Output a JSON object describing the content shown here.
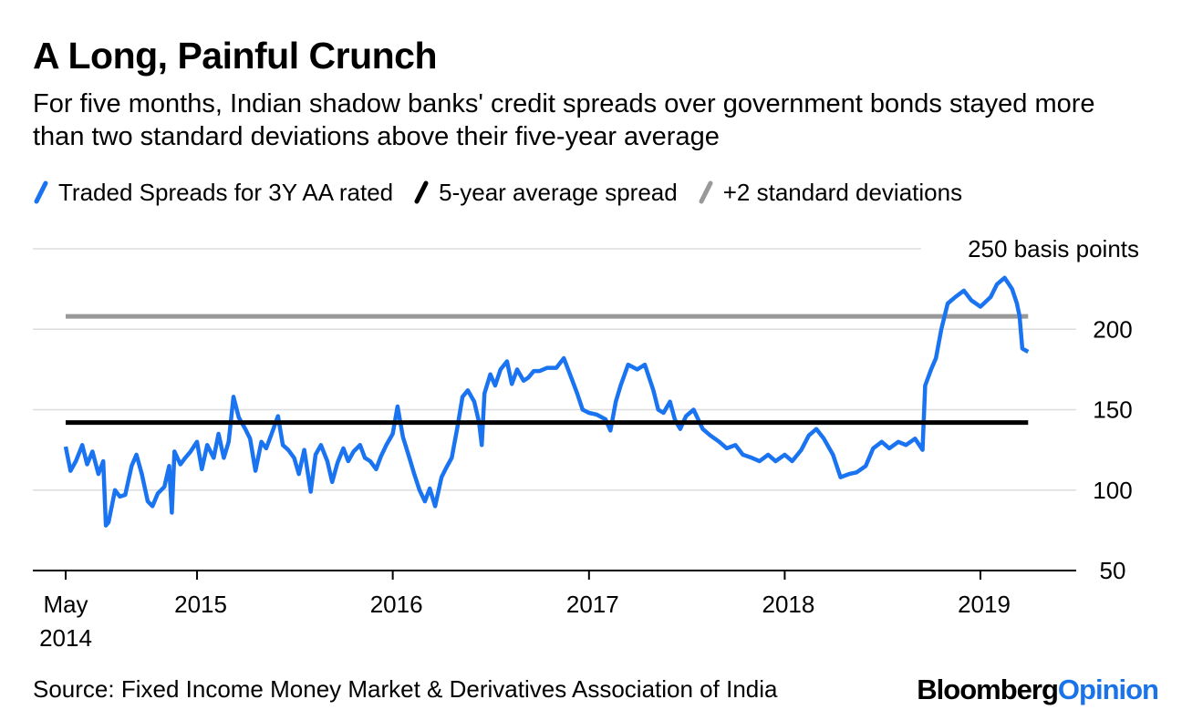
{
  "title": "A Long, Painful Crunch",
  "subtitle": "For five months, Indian shadow banks' credit spreads over government bonds stayed more than two standard deviations above their five-year average",
  "source": "Source: Fixed Income Money Market & Derivatives Association of India",
  "brand": {
    "part1": "Bloomberg",
    "part2": "Opinion"
  },
  "colors": {
    "traded": "#1a73f0",
    "average": "#000000",
    "stdev": "#999999"
  },
  "chart_data": {
    "type": "line",
    "title": "A Long, Painful Crunch",
    "subtitle": "For five months, Indian shadow banks' credit spreads over government bonds stayed more than two standard deviations above their five-year average",
    "ylabel": "250 basis points",
    "unit_label": "basis points",
    "ylim": [
      50,
      250
    ],
    "yticks": [
      50,
      100,
      150,
      200
    ],
    "ytick_labels": [
      "50",
      "100",
      "150",
      "200"
    ],
    "top_label": "250 basis points",
    "xlim": [
      "2014-04-01",
      "2019-07-01"
    ],
    "xticks": [
      "2014-05-01",
      "2015-01-01",
      "2016-01-01",
      "2017-01-01",
      "2018-01-01",
      "2019-01-01"
    ],
    "xtick_labels": [
      [
        "May",
        "2014"
      ],
      [
        "2015"
      ],
      [
        "2016"
      ],
      [
        "2017"
      ],
      [
        "2018"
      ],
      [
        "2019"
      ]
    ],
    "grid": true,
    "legend_position": "top",
    "series": [
      {
        "name": "Traded Spreads for 3Y AA rated",
        "color": "#1a73f0",
        "points": [
          [
            "2014-05-01",
            127
          ],
          [
            "2014-05-10",
            112
          ],
          [
            "2014-05-20",
            118
          ],
          [
            "2014-06-01",
            128
          ],
          [
            "2014-06-10",
            116
          ],
          [
            "2014-06-20",
            124
          ],
          [
            "2014-07-01",
            110
          ],
          [
            "2014-07-10",
            118
          ],
          [
            "2014-07-15",
            78
          ],
          [
            "2014-07-20",
            80
          ],
          [
            "2014-08-01",
            100
          ],
          [
            "2014-08-10",
            96
          ],
          [
            "2014-08-20",
            97
          ],
          [
            "2014-09-01",
            115
          ],
          [
            "2014-09-10",
            122
          ],
          [
            "2014-09-20",
            110
          ],
          [
            "2014-10-01",
            93
          ],
          [
            "2014-10-10",
            90
          ],
          [
            "2014-10-20",
            98
          ],
          [
            "2014-11-01",
            102
          ],
          [
            "2014-11-10",
            115
          ],
          [
            "2014-11-15",
            86
          ],
          [
            "2014-11-20",
            124
          ],
          [
            "2014-12-01",
            116
          ],
          [
            "2014-12-10",
            120
          ],
          [
            "2014-12-20",
            124
          ],
          [
            "2015-01-01",
            130
          ],
          [
            "2015-01-10",
            113
          ],
          [
            "2015-01-20",
            128
          ],
          [
            "2015-02-01",
            120
          ],
          [
            "2015-02-10",
            135
          ],
          [
            "2015-02-20",
            120
          ],
          [
            "2015-03-01",
            130
          ],
          [
            "2015-03-10",
            158
          ],
          [
            "2015-03-20",
            145
          ],
          [
            "2015-04-01",
            138
          ],
          [
            "2015-04-10",
            132
          ],
          [
            "2015-04-20",
            112
          ],
          [
            "2015-05-01",
            130
          ],
          [
            "2015-05-10",
            126
          ],
          [
            "2015-05-20",
            135
          ],
          [
            "2015-06-01",
            146
          ],
          [
            "2015-06-10",
            128
          ],
          [
            "2015-06-20",
            125
          ],
          [
            "2015-07-01",
            120
          ],
          [
            "2015-07-10",
            110
          ],
          [
            "2015-07-20",
            125
          ],
          [
            "2015-08-01",
            99
          ],
          [
            "2015-08-10",
            122
          ],
          [
            "2015-08-20",
            128
          ],
          [
            "2015-09-01",
            118
          ],
          [
            "2015-09-10",
            105
          ],
          [
            "2015-09-20",
            117
          ],
          [
            "2015-10-01",
            126
          ],
          [
            "2015-10-10",
            118
          ],
          [
            "2015-10-20",
            124
          ],
          [
            "2015-11-01",
            128
          ],
          [
            "2015-11-10",
            120
          ],
          [
            "2015-11-20",
            118
          ],
          [
            "2015-12-01",
            113
          ],
          [
            "2015-12-10",
            121
          ],
          [
            "2015-12-20",
            128
          ],
          [
            "2016-01-01",
            135
          ],
          [
            "2016-01-10",
            152
          ],
          [
            "2016-01-20",
            133
          ],
          [
            "2016-02-01",
            120
          ],
          [
            "2016-02-10",
            110
          ],
          [
            "2016-02-20",
            100
          ],
          [
            "2016-03-01",
            93
          ],
          [
            "2016-03-10",
            101
          ],
          [
            "2016-03-20",
            90
          ],
          [
            "2016-04-01",
            108
          ],
          [
            "2016-04-10",
            114
          ],
          [
            "2016-04-20",
            120
          ],
          [
            "2016-05-01",
            140
          ],
          [
            "2016-05-10",
            158
          ],
          [
            "2016-05-20",
            162
          ],
          [
            "2016-06-01",
            155
          ],
          [
            "2016-06-10",
            142
          ],
          [
            "2016-06-15",
            128
          ],
          [
            "2016-06-20",
            160
          ],
          [
            "2016-07-01",
            172
          ],
          [
            "2016-07-10",
            165
          ],
          [
            "2016-07-20",
            175
          ],
          [
            "2016-08-01",
            180
          ],
          [
            "2016-08-10",
            166
          ],
          [
            "2016-08-20",
            175
          ],
          [
            "2016-09-01",
            168
          ],
          [
            "2016-09-10",
            170
          ],
          [
            "2016-09-20",
            174
          ],
          [
            "2016-10-01",
            174
          ],
          [
            "2016-10-15",
            176
          ],
          [
            "2016-11-01",
            176
          ],
          [
            "2016-11-15",
            182
          ],
          [
            "2016-12-01",
            168
          ],
          [
            "2016-12-10",
            160
          ],
          [
            "2016-12-20",
            150
          ],
          [
            "2017-01-01",
            148
          ],
          [
            "2017-01-15",
            147
          ],
          [
            "2017-02-01",
            144
          ],
          [
            "2017-02-10",
            137
          ],
          [
            "2017-02-20",
            155
          ],
          [
            "2017-03-01",
            165
          ],
          [
            "2017-03-15",
            178
          ],
          [
            "2017-04-01",
            175
          ],
          [
            "2017-04-15",
            178
          ],
          [
            "2017-05-01",
            162
          ],
          [
            "2017-05-10",
            150
          ],
          [
            "2017-05-20",
            148
          ],
          [
            "2017-06-01",
            155
          ],
          [
            "2017-06-10",
            144
          ],
          [
            "2017-06-20",
            138
          ],
          [
            "2017-07-01",
            146
          ],
          [
            "2017-07-15",
            150
          ],
          [
            "2017-08-01",
            138
          ],
          [
            "2017-08-15",
            134
          ],
          [
            "2017-09-01",
            130
          ],
          [
            "2017-09-15",
            126
          ],
          [
            "2017-10-01",
            128
          ],
          [
            "2017-10-15",
            122
          ],
          [
            "2017-11-01",
            120
          ],
          [
            "2017-11-15",
            118
          ],
          [
            "2017-12-01",
            122
          ],
          [
            "2017-12-15",
            118
          ],
          [
            "2018-01-01",
            122
          ],
          [
            "2018-01-15",
            118
          ],
          [
            "2018-02-01",
            125
          ],
          [
            "2018-02-15",
            134
          ],
          [
            "2018-03-01",
            138
          ],
          [
            "2018-03-15",
            132
          ],
          [
            "2018-04-01",
            122
          ],
          [
            "2018-04-15",
            108
          ],
          [
            "2018-05-01",
            110
          ],
          [
            "2018-05-15",
            111
          ],
          [
            "2018-06-01",
            115
          ],
          [
            "2018-06-15",
            126
          ],
          [
            "2018-07-01",
            130
          ],
          [
            "2018-07-15",
            126
          ],
          [
            "2018-08-01",
            130
          ],
          [
            "2018-08-15",
            128
          ],
          [
            "2018-09-01",
            132
          ],
          [
            "2018-09-15",
            125
          ],
          [
            "2018-09-20",
            165
          ],
          [
            "2018-10-01",
            175
          ],
          [
            "2018-10-10",
            182
          ],
          [
            "2018-10-20",
            200
          ],
          [
            "2018-11-01",
            216
          ],
          [
            "2018-11-15",
            220
          ],
          [
            "2018-12-01",
            224
          ],
          [
            "2018-12-15",
            218
          ],
          [
            "2019-01-01",
            214
          ],
          [
            "2019-01-20",
            220
          ],
          [
            "2019-02-01",
            228
          ],
          [
            "2019-02-15",
            232
          ],
          [
            "2019-03-01",
            225
          ],
          [
            "2019-03-10",
            216
          ],
          [
            "2019-03-15",
            208
          ],
          [
            "2019-03-20",
            188
          ],
          [
            "2019-03-31",
            186
          ]
        ]
      },
      {
        "name": "5-year average spread",
        "color": "#000000",
        "points": [
          [
            "2014-05-01",
            142
          ],
          [
            "2019-03-31",
            142
          ]
        ]
      },
      {
        "name": "+2 standard deviations",
        "color": "#999999",
        "points": [
          [
            "2014-05-01",
            208
          ],
          [
            "2019-03-31",
            208
          ]
        ]
      }
    ]
  }
}
